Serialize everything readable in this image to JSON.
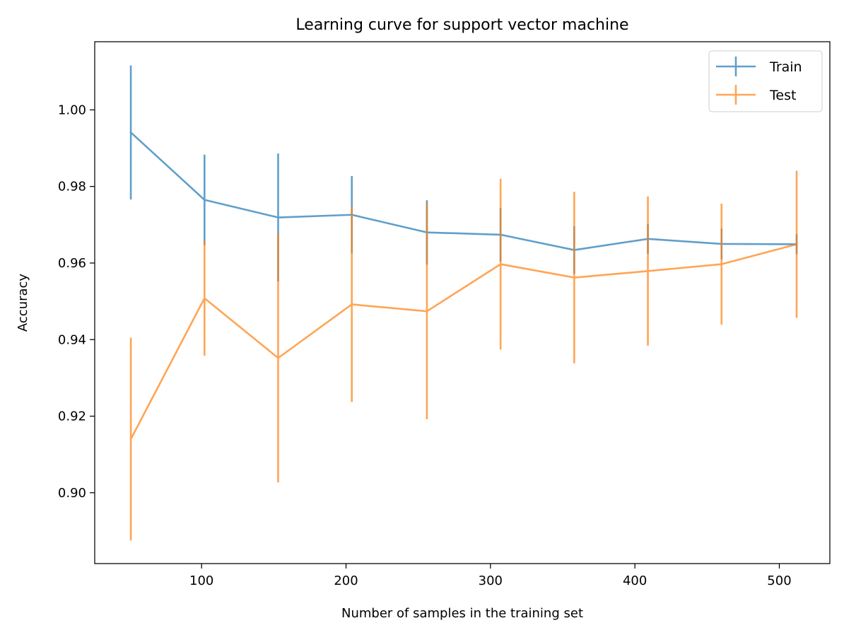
{
  "chart_data": {
    "type": "line",
    "title": "Learning curve for support vector machine",
    "xlabel": "Number of samples in the training set",
    "ylabel": "Accuracy",
    "xlim": [
      26,
      535
    ],
    "ylim": [
      0.8815,
      1.0178
    ],
    "xticks": [
      100,
      200,
      300,
      400,
      500
    ],
    "yticks": [
      0.9,
      0.92,
      0.94,
      0.96,
      0.98,
      1.0
    ],
    "xtick_labels": [
      "100",
      "200",
      "300",
      "400",
      "500"
    ],
    "ytick_labels": [
      "0.90",
      "0.92",
      "0.94",
      "0.96",
      "0.98",
      "1.00"
    ],
    "grid": false,
    "legend_position": "top-right",
    "x": [
      51,
      102,
      153,
      204,
      256,
      307,
      358,
      409,
      460,
      512
    ],
    "series": [
      {
        "name": "Train",
        "color": "#1f77b4",
        "values": [
          0.9941,
          0.9765,
          0.9719,
          0.9726,
          0.968,
          0.9674,
          0.9634,
          0.9663,
          0.965,
          0.9649
        ],
        "errors": [
          0.0175,
          0.0118,
          0.0167,
          0.0101,
          0.0084,
          0.007,
          0.0062,
          0.0039,
          0.004,
          0.0026
        ]
      },
      {
        "name": "Test",
        "color": "#ff7f0e",
        "values": [
          0.914,
          0.9508,
          0.9352,
          0.9492,
          0.9474,
          0.9597,
          0.9562,
          0.9579,
          0.9597,
          0.9649
        ],
        "errors": [
          0.0265,
          0.015,
          0.0325,
          0.0255,
          0.0282,
          0.0223,
          0.0224,
          0.0195,
          0.0158,
          0.0192
        ]
      }
    ]
  }
}
